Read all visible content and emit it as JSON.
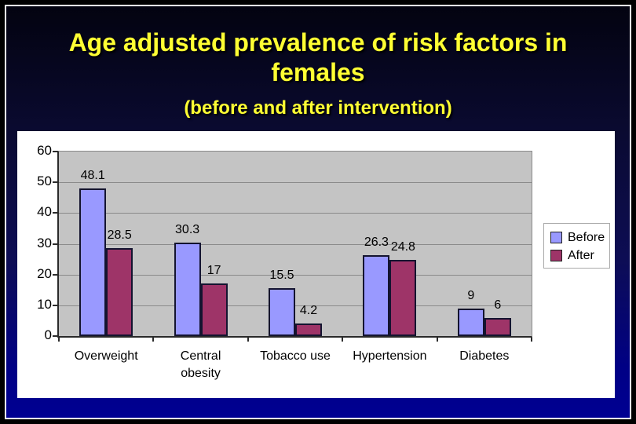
{
  "slide": {
    "title_line1": "Age adjusted prevalence of risk factors in",
    "title_line2": "females",
    "subtitle": "(before and after intervention)",
    "title_color": "#ffff33",
    "background_color": "#000080"
  },
  "chart_data": {
    "type": "bar",
    "title": "",
    "xlabel": "",
    "ylabel": "",
    "categories": [
      "Overweight",
      "Central obesity",
      "Tobacco use",
      "Hypertension",
      "Diabetes"
    ],
    "series": [
      {
        "name": "Before",
        "color": "#9999ff",
        "values": [
          48.1,
          30.3,
          15.5,
          26.3,
          9
        ],
        "labels": [
          "48.1",
          "30.3",
          "15.5",
          "26.3",
          "9"
        ]
      },
      {
        "name": "After",
        "color": "#9e3468",
        "values": [
          28.5,
          17,
          4.2,
          24.8,
          6
        ],
        "labels": [
          "28.5",
          "17",
          "4.2",
          "24.8",
          "6"
        ]
      }
    ],
    "ylim": [
      0,
      60
    ],
    "yticks": [
      0,
      10,
      20,
      30,
      40,
      50,
      60
    ],
    "grid": true,
    "legend_position": "right",
    "plot_bg": "#c4c4c4",
    "chart_bg": "#ffffff"
  }
}
